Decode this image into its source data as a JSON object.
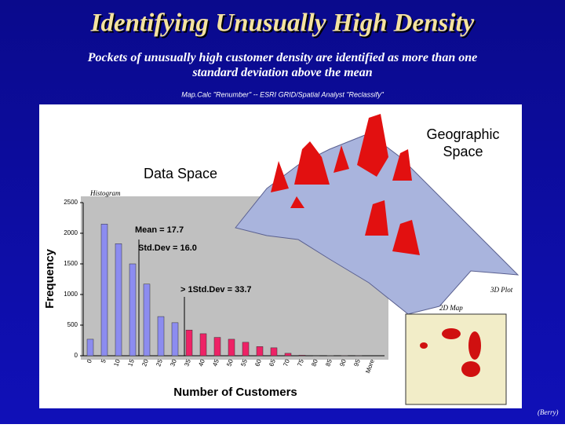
{
  "slide": {
    "title": "Identifying Unusually High Density",
    "subtitle": "Pockets of unusually high customer density are identified as more than one standard deviation above the mean",
    "source": "Map.Calc \"Renumber\" -- ESRI GRID/Spatial Analyst \"Reclassify\"",
    "data_space": "Data Space",
    "geo_space": "Geographic Space",
    "plot3d": "3D Plot",
    "map2d": "2D Map",
    "credit": "(Berry)"
  },
  "chart_data": {
    "type": "bar",
    "title": "Histogram",
    "x_label": "Number of Customers",
    "y_label": "Frequency",
    "categories": [
      "0",
      "5",
      "10",
      "15",
      "20",
      "25",
      "30",
      "35",
      "40",
      "45",
      "50",
      "55",
      "60",
      "65",
      "70",
      "75",
      "80",
      "85",
      "90",
      "95",
      "More"
    ],
    "values": [
      270,
      2150,
      1830,
      1500,
      1170,
      640,
      540,
      420,
      360,
      300,
      270,
      220,
      150,
      130,
      40,
      10,
      5,
      3,
      2,
      1,
      0
    ],
    "colors": [
      "#8c8cf0",
      "#8c8cf0",
      "#8c8cf0",
      "#8c8cf0",
      "#8c8cf0",
      "#8c8cf0",
      "#8c8cf0",
      "#ee2266",
      "#ee2266",
      "#ee2266",
      "#ee2266",
      "#ee2266",
      "#ee2266",
      "#ee2266",
      "#ee2266",
      "#ee2266",
      "#ee2266",
      "#ee2266",
      "#ee2266",
      "#ee2266",
      "#ee2266"
    ],
    "ylim": [
      0,
      2500
    ],
    "yticks": [
      0,
      500,
      1000,
      1500,
      2000,
      2500
    ],
    "annotations": [
      "Mean = 17.7",
      "Std.Dev = 16.0",
      "> 1Std.Dev = 33.7"
    ]
  }
}
